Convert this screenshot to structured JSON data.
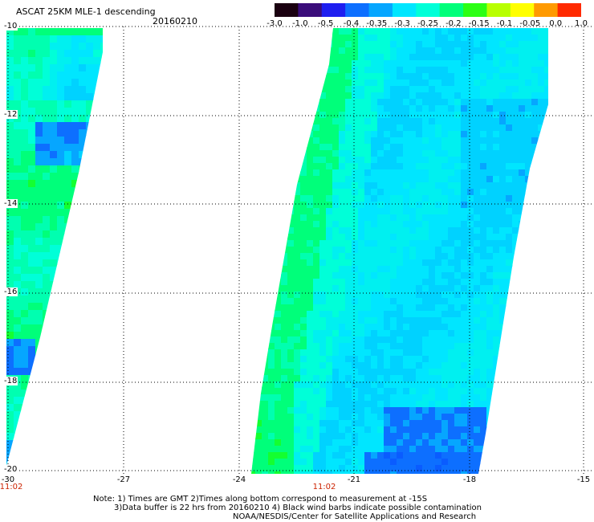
{
  "header": {
    "title": "ASCAT 25KM MLE-1 descending",
    "date": "20160210"
  },
  "colorbar": {
    "labels": [
      "-3.0",
      "-1.0",
      "-0.5",
      "-0.4",
      "-0.35",
      "-0.3",
      "-0.25",
      "-0.2",
      "-0.15",
      "-0.1",
      "-0.05",
      "0.0",
      "1.0"
    ],
    "colors": [
      "#1a0010",
      "#3a0c7a",
      "#1e1ef0",
      "#0d6fff",
      "#06a6ff",
      "#00e6ff",
      "#00ffd8",
      "#00ff7a",
      "#2cff14",
      "#b8ff00",
      "#ffff00",
      "#ff9a00",
      "#ff2a00"
    ]
  },
  "axes": {
    "y_ticks": [
      "-10",
      "-12",
      "-14",
      "-16",
      "-18",
      "-20"
    ],
    "x_ticks": [
      "-30",
      "-27",
      "-24",
      "-21",
      "-18",
      "-15"
    ],
    "x_range": [
      -30,
      -15
    ],
    "y_range": [
      -10,
      -20
    ],
    "grid": "dotted"
  },
  "times": [
    "11:02",
    "11:02"
  ],
  "notes": [
    "Note: 1) Times are GMT 2)Times along bottom correspond to measurement at -15S",
    "3)Data buffer is 22 hrs from 20160210 4) Black wind barbs indicate possible contamination",
    "NOAA/NESDIS/Center for Satellite Applications and Research"
  ]
}
